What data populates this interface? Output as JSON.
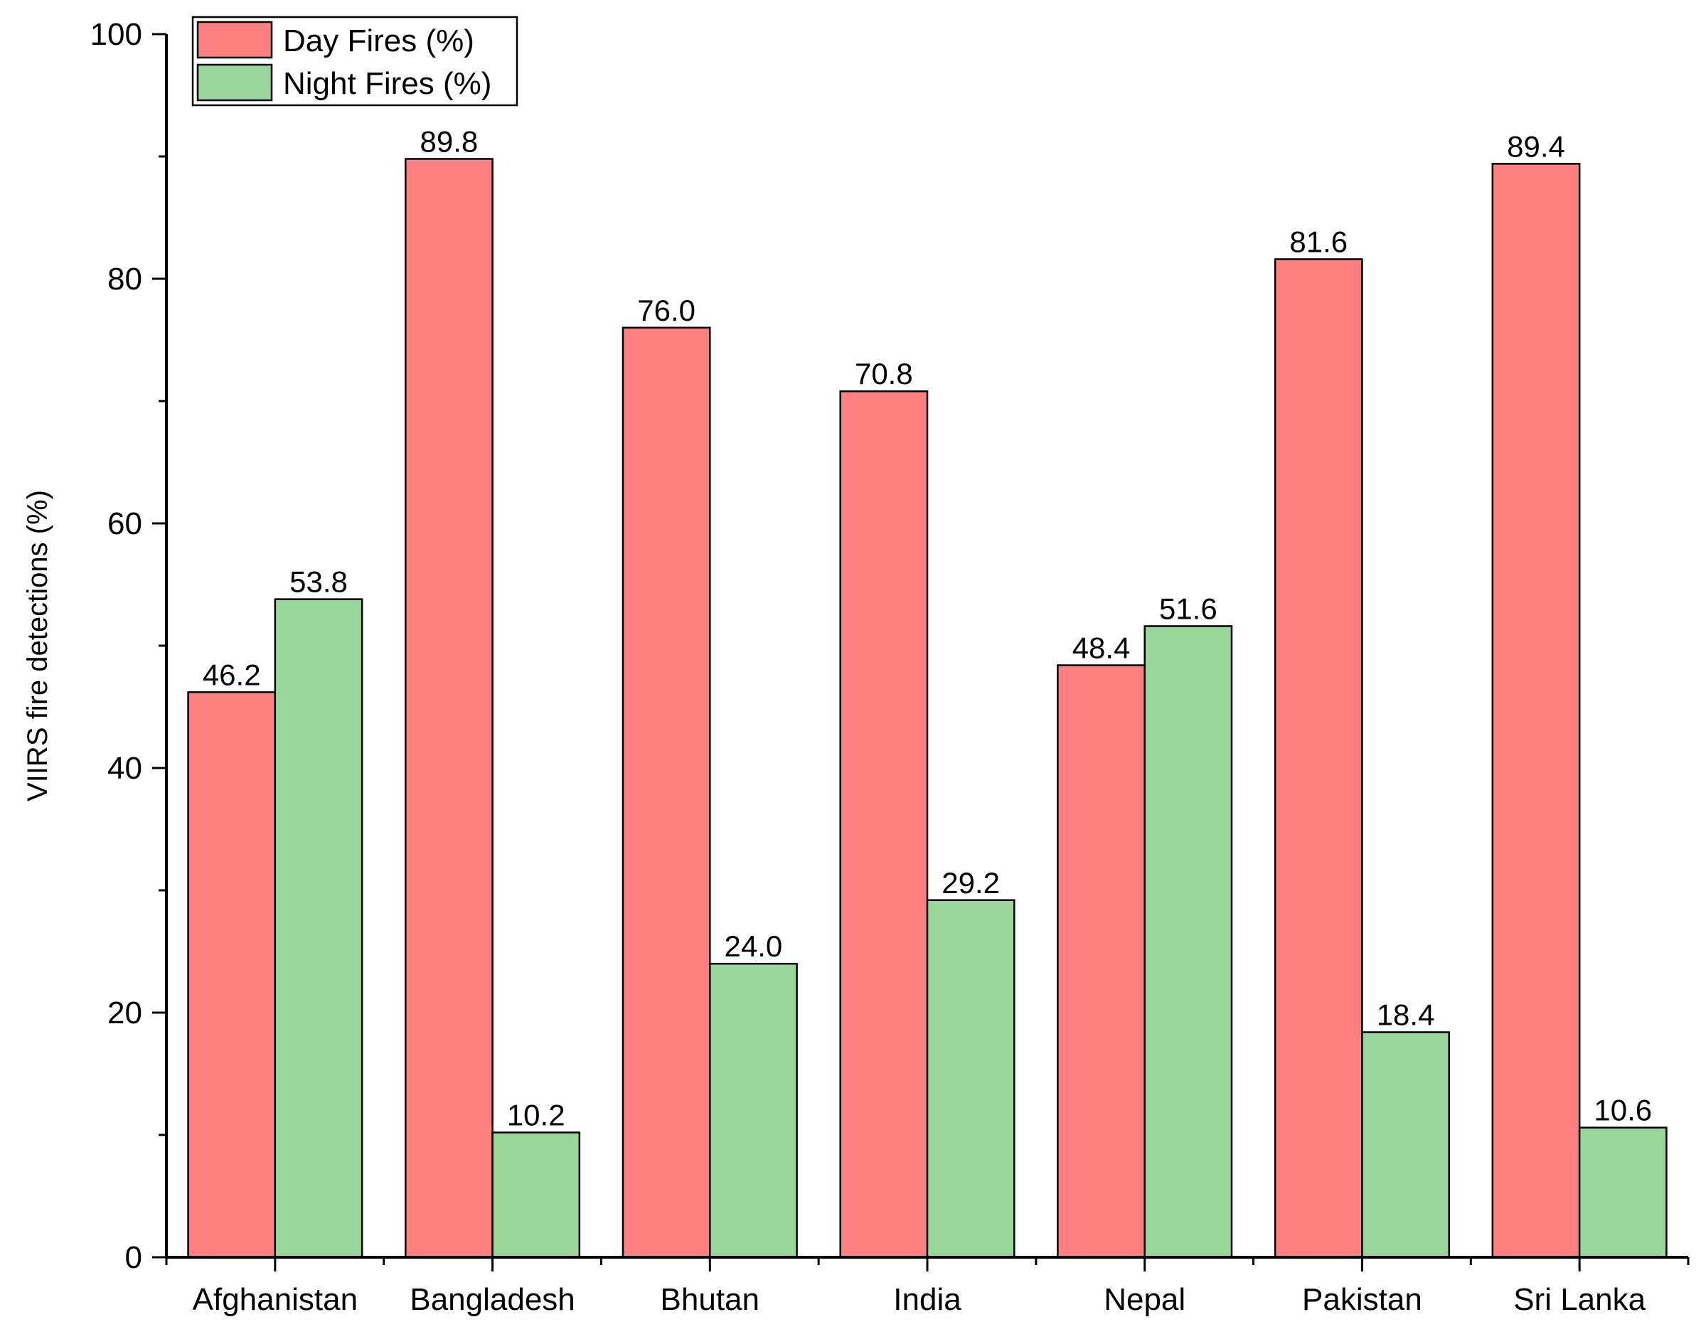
{
  "chart_data": {
    "type": "bar",
    "title": "",
    "xlabel": "",
    "ylabel": "VIIRS fire detections (%)",
    "ylim": [
      0,
      100
    ],
    "yticks": [
      "0",
      "20",
      "40",
      "60",
      "80",
      "100"
    ],
    "grid": false,
    "legend_position": "top-left",
    "categories": [
      "Afghanistan",
      "Bangladesh",
      "Bhutan",
      "India",
      "Nepal",
      "Pakistan",
      "Sri Lanka"
    ],
    "series": [
      {
        "name": "Day Fires (%)",
        "color": "#ff8080",
        "values": [
          46.2,
          89.8,
          76.0,
          70.8,
          48.4,
          81.6,
          89.4
        ],
        "labels": [
          "46.2",
          "89.8",
          "76.0",
          "70.8",
          "48.4",
          "81.6",
          "89.4"
        ]
      },
      {
        "name": "Night Fires (%)",
        "color": "#99d699",
        "values": [
          53.8,
          10.2,
          24.0,
          29.2,
          51.6,
          18.4,
          10.6
        ],
        "labels": [
          "53.8",
          "10.2",
          "24.0",
          "29.2",
          "51.6",
          "18.4",
          "10.6"
        ]
      }
    ]
  }
}
